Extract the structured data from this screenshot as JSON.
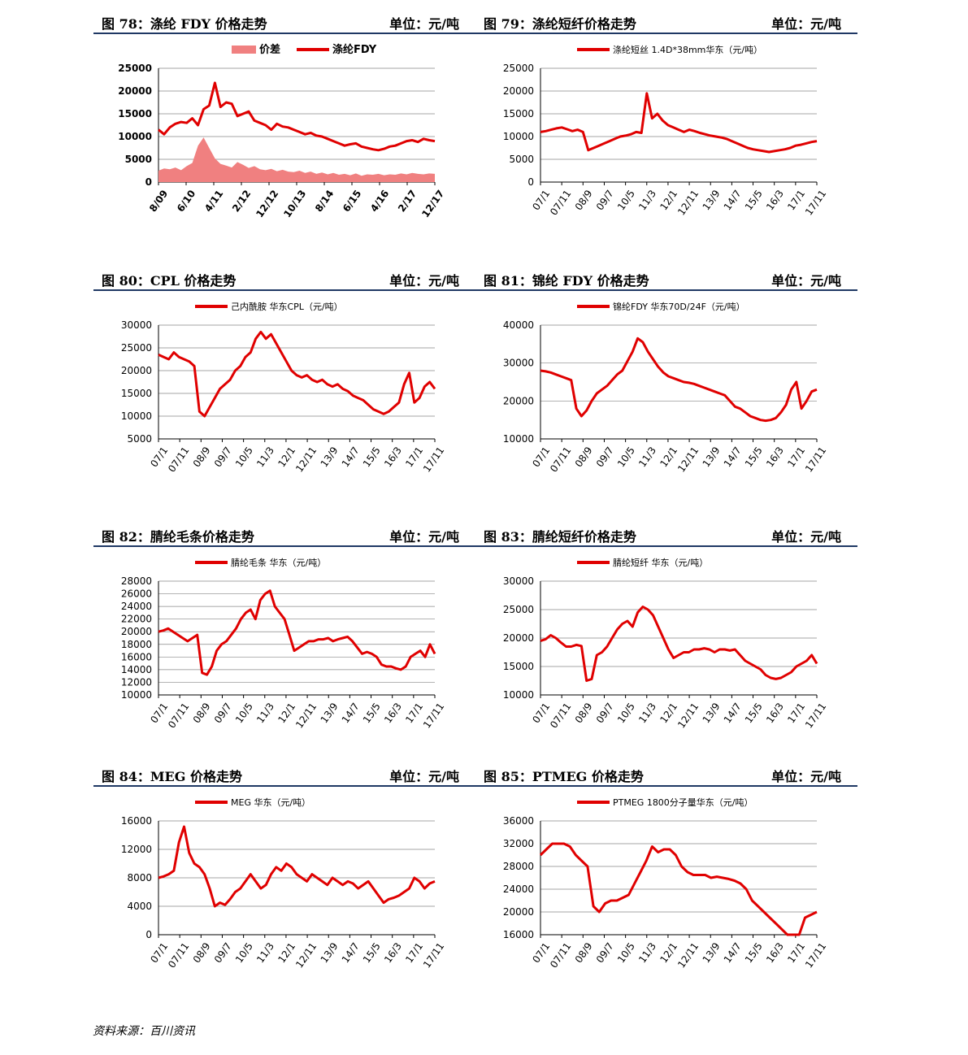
{
  "footer": "资料来源：百川资讯",
  "chart_data": [
    {
      "id": "fig78",
      "type": "line",
      "title": "图 78：涤纶 FDY 价格走势",
      "unit": "单位：元/吨",
      "legend_style": "bold",
      "legend_position": "top-center",
      "grid": true,
      "ylim": [
        0,
        25000
      ],
      "yticks": [
        0,
        5000,
        10000,
        15000,
        20000,
        25000
      ],
      "xlabels": [
        "8/09",
        "6/10",
        "4/11",
        "2/12",
        "12/12",
        "10/13",
        "8/14",
        "6/15",
        "4/16",
        "2/17",
        "12/17"
      ],
      "series": [
        {
          "name": "价差",
          "kind": "area",
          "color": "#f08080",
          "values": [
            2500,
            3000,
            2800,
            3200,
            2600,
            3500,
            4200,
            8000,
            9800,
            7500,
            5200,
            4000,
            3600,
            3200,
            4400,
            3800,
            3100,
            3500,
            2800,
            2600,
            2900,
            2400,
            2700,
            2300,
            2200,
            2500,
            2000,
            2300,
            1800,
            2100,
            1700,
            2000,
            1600,
            1800,
            1500,
            1900,
            1400,
            1700,
            1600,
            1800,
            1500,
            1700,
            1600,
            1900,
            1700,
            2000,
            1800,
            1700,
            1900,
            1800
          ]
        },
        {
          "name": "涤纶FDY",
          "kind": "line",
          "color": "#e00000",
          "values": [
            11500,
            10500,
            12000,
            12800,
            13200,
            13000,
            14000,
            12500,
            16000,
            16800,
            21800,
            16500,
            17500,
            17200,
            14500,
            15000,
            15500,
            13500,
            13000,
            12500,
            11500,
            12800,
            12200,
            12000,
            11500,
            11000,
            10500,
            10800,
            10200,
            10000,
            9500,
            9000,
            8500,
            8000,
            8300,
            8500,
            7800,
            7500,
            7200,
            7000,
            7300,
            7800,
            8000,
            8500,
            9000,
            9200,
            8800,
            9500,
            9200,
            9000
          ]
        }
      ]
    },
    {
      "id": "fig79",
      "type": "line",
      "title": "图 79：涤纶短纤价格走势",
      "unit": "单位：元/吨",
      "legend_style": "normal",
      "legend_position": "top-center",
      "grid": true,
      "ylim": [
        0,
        25000
      ],
      "yticks": [
        0,
        5000,
        10000,
        15000,
        20000,
        25000
      ],
      "xlabels": [
        "07/1",
        "07/11",
        "08/9",
        "09/7",
        "10/5",
        "11/3",
        "12/1",
        "12/11",
        "13/9",
        "14/7",
        "15/5",
        "16/3",
        "17/1",
        "17/11"
      ],
      "series": [
        {
          "name": "涤纶短丝 1.4D*38mm华东（元/吨）",
          "kind": "line",
          "color": "#e00000",
          "values": [
            11000,
            11200,
            11500,
            11800,
            12000,
            11600,
            11200,
            11500,
            11000,
            7000,
            7500,
            8000,
            8500,
            9000,
            9500,
            10000,
            10200,
            10500,
            11000,
            10800,
            19500,
            14000,
            15000,
            13500,
            12500,
            12000,
            11500,
            11000,
            11500,
            11200,
            10800,
            10500,
            10200,
            10000,
            9800,
            9500,
            9000,
            8500,
            8000,
            7500,
            7200,
            7000,
            6800,
            6600,
            6800,
            7000,
            7200,
            7500,
            8000,
            8200,
            8500,
            8800,
            9000
          ]
        }
      ]
    },
    {
      "id": "fig80",
      "type": "line",
      "title": "图 80：CPL 价格走势",
      "unit": "单位：元/吨",
      "legend_style": "normal",
      "legend_position": "top-center",
      "grid": true,
      "ylim": [
        5000,
        30000
      ],
      "yticks": [
        5000,
        10000,
        15000,
        20000,
        25000,
        30000
      ],
      "xlabels": [
        "07/1",
        "07/11",
        "08/9",
        "09/7",
        "10/5",
        "11/3",
        "12/1",
        "12/11",
        "13/9",
        "14/7",
        "15/5",
        "16/3",
        "17/1",
        "17/11"
      ],
      "series": [
        {
          "name": "己内酰胺 华东CPL（元/吨）",
          "kind": "line",
          "color": "#e00000",
          "values": [
            23500,
            23000,
            22500,
            24000,
            23000,
            22500,
            22000,
            21000,
            11000,
            10000,
            12000,
            14000,
            16000,
            17000,
            18000,
            20000,
            21000,
            23000,
            24000,
            27000,
            28500,
            27000,
            28000,
            26000,
            24000,
            22000,
            20000,
            19000,
            18500,
            19000,
            18000,
            17500,
            18000,
            17000,
            16500,
            17000,
            16000,
            15500,
            14500,
            14000,
            13500,
            12500,
            11500,
            11000,
            10500,
            11000,
            12000,
            13000,
            17000,
            19500,
            13000,
            14000,
            16500,
            17500,
            16000
          ]
        }
      ]
    },
    {
      "id": "fig81",
      "type": "line",
      "title": "图 81：锦纶 FDY 价格走势",
      "unit": "单位：元/吨",
      "legend_style": "normal",
      "legend_position": "top-center",
      "grid": true,
      "ylim": [
        10000,
        40000
      ],
      "yticks": [
        10000,
        20000,
        30000,
        40000
      ],
      "xlabels": [
        "07/1",
        "07/11",
        "08/9",
        "09/7",
        "10/5",
        "11/3",
        "12/1",
        "12/11",
        "13/9",
        "14/7",
        "15/5",
        "16/3",
        "17/1",
        "17/11"
      ],
      "series": [
        {
          "name": "锦纶FDY 华东70D/24F（元/吨）",
          "kind": "line",
          "color": "#e00000",
          "values": [
            28000,
            27800,
            27500,
            27000,
            26500,
            26000,
            25500,
            18000,
            16000,
            17500,
            20000,
            22000,
            23000,
            24000,
            25500,
            27000,
            28000,
            30500,
            33000,
            36500,
            35500,
            33000,
            31000,
            29000,
            27500,
            26500,
            26000,
            25500,
            25000,
            24800,
            24500,
            24000,
            23500,
            23000,
            22500,
            22000,
            21500,
            20000,
            18500,
            18000,
            17000,
            16000,
            15500,
            15000,
            14800,
            15000,
            15500,
            17000,
            19000,
            23000,
            25000,
            18000,
            20000,
            22500,
            23000
          ]
        }
      ]
    },
    {
      "id": "fig82",
      "type": "line",
      "title": "图 82：腈纶毛条价格走势",
      "unit": "单位：元/吨",
      "legend_style": "normal",
      "legend_position": "top-center",
      "grid": true,
      "ylim": [
        10000,
        28000
      ],
      "yticks": [
        10000,
        12000,
        14000,
        16000,
        18000,
        20000,
        22000,
        24000,
        26000,
        28000
      ],
      "xlabels": [
        "07/1",
        "07/11",
        "08/9",
        "09/7",
        "10/5",
        "11/3",
        "12/1",
        "12/11",
        "13/9",
        "14/7",
        "15/5",
        "16/3",
        "17/1",
        "17/11"
      ],
      "series": [
        {
          "name": "腈纶毛条 华东（元/吨）",
          "kind": "line",
          "color": "#e00000",
          "values": [
            20000,
            20200,
            20500,
            20000,
            19500,
            19000,
            18500,
            19000,
            19500,
            13500,
            13200,
            14500,
            17000,
            18000,
            18500,
            19500,
            20500,
            22000,
            23000,
            23500,
            22000,
            25000,
            26000,
            26500,
            24000,
            23000,
            22000,
            19500,
            17000,
            17500,
            18000,
            18500,
            18500,
            18800,
            18800,
            19000,
            18500,
            18800,
            19000,
            19200,
            18500,
            17500,
            16500,
            16800,
            16500,
            16000,
            14800,
            14500,
            14500,
            14200,
            14000,
            14500,
            16000,
            16500,
            17000,
            16000,
            18000,
            16500
          ]
        }
      ]
    },
    {
      "id": "fig83",
      "type": "line",
      "title": "图 83：腈纶短纤价格走势",
      "unit": "单位：元/吨",
      "legend_style": "normal",
      "legend_position": "top-center",
      "grid": true,
      "ylim": [
        10000,
        30000
      ],
      "yticks": [
        10000,
        15000,
        20000,
        25000,
        30000
      ],
      "xlabels": [
        "07/1",
        "07/11",
        "08/9",
        "09/7",
        "10/5",
        "11/3",
        "12/1",
        "12/11",
        "13/9",
        "14/7",
        "15/5",
        "16/3",
        "17/1",
        "17/11"
      ],
      "series": [
        {
          "name": "腈纶短纤 华东（元/吨）",
          "kind": "line",
          "color": "#e00000",
          "values": [
            19500,
            19800,
            20500,
            20000,
            19200,
            18500,
            18500,
            18800,
            18600,
            12500,
            12800,
            17000,
            17500,
            18500,
            20000,
            21500,
            22500,
            23000,
            22000,
            24500,
            25500,
            25000,
            24000,
            22000,
            20000,
            18000,
            16500,
            17000,
            17500,
            17500,
            18000,
            18000,
            18200,
            18000,
            17500,
            18000,
            18000,
            17800,
            18000,
            17000,
            16000,
            15500,
            15000,
            14500,
            13500,
            13000,
            12800,
            13000,
            13500,
            14000,
            15000,
            15500,
            16000,
            17000,
            15500
          ]
        }
      ]
    },
    {
      "id": "fig84",
      "type": "line",
      "title": "图 84：MEG 价格走势",
      "unit": "单位：元/吨",
      "legend_style": "normal",
      "legend_position": "top-center",
      "grid": true,
      "ylim": [
        0,
        16000
      ],
      "yticks": [
        0,
        4000,
        8000,
        12000,
        16000
      ],
      "xlabels": [
        "07/1",
        "07/11",
        "08/9",
        "09/7",
        "10/5",
        "11/3",
        "12/1",
        "12/11",
        "13/9",
        "14/7",
        "15/5",
        "16/3",
        "17/1",
        "17/11"
      ],
      "series": [
        {
          "name": "MEG 华东（元/吨）",
          "kind": "line",
          "color": "#e00000",
          "values": [
            8000,
            8200,
            8500,
            9000,
            13000,
            15200,
            11500,
            10000,
            9500,
            8500,
            6500,
            4000,
            4500,
            4200,
            5000,
            6000,
            6500,
            7500,
            8500,
            7500,
            6500,
            7000,
            8500,
            9500,
            9000,
            10000,
            9500,
            8500,
            8000,
            7500,
            8500,
            8000,
            7500,
            7000,
            8000,
            7500,
            7000,
            7500,
            7200,
            6500,
            7000,
            7500,
            6500,
            5500,
            4500,
            5000,
            5200,
            5500,
            6000,
            6500,
            8000,
            7500,
            6500,
            7200,
            7500
          ]
        }
      ]
    },
    {
      "id": "fig85",
      "type": "line",
      "title": "图 85：PTMEG 价格走势",
      "unit": "单位：元/吨",
      "legend_style": "normal",
      "legend_position": "top-center",
      "grid": true,
      "ylim": [
        16000,
        36000
      ],
      "yticks": [
        16000,
        20000,
        24000,
        28000,
        32000,
        36000
      ],
      "xlabels": [
        "07/1",
        "07/11",
        "08/9",
        "09/7",
        "10/5",
        "11/3",
        "12/1",
        "12/11",
        "13/9",
        "14/7",
        "15/5",
        "16/3",
        "17/1",
        "17/11"
      ],
      "series": [
        {
          "name": "PTMEG 1800分子量华东（元/吨）",
          "kind": "line",
          "color": "#e00000",
          "values": [
            30000,
            31000,
            32000,
            32000,
            32000,
            31500,
            30000,
            29000,
            28000,
            21000,
            20000,
            21500,
            22000,
            22000,
            22500,
            23000,
            25000,
            27000,
            29000,
            31500,
            30500,
            31000,
            31000,
            30000,
            28000,
            27000,
            26500,
            26500,
            26500,
            26000,
            26200,
            26000,
            25800,
            25500,
            25000,
            24000,
            22000,
            21000,
            20000,
            19000,
            18000,
            17000,
            16000,
            15500,
            16000,
            19000,
            19500,
            20000
          ]
        }
      ]
    }
  ]
}
